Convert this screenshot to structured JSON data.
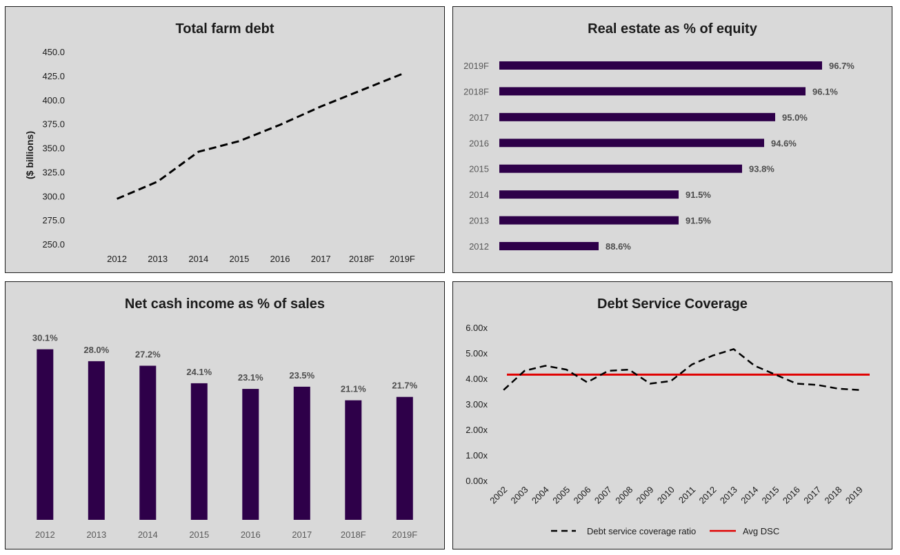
{
  "colors": {
    "bar": "#2e0049",
    "debt_line": "#000000",
    "avg_line": "#e00000",
    "panel_bg": "#d9d9d9"
  },
  "chart_data": [
    {
      "type": "line",
      "title": "Total farm debt",
      "ylabel": "($ billions)",
      "xlabel": "",
      "categories": [
        "2012",
        "2013",
        "2014",
        "2015",
        "2016",
        "2017",
        "2018F",
        "2019F"
      ],
      "values": [
        297.0,
        315.0,
        346.0,
        357.0,
        374.0,
        393.0,
        410.0,
        427.0
      ],
      "yticks": [
        "250.0",
        "275.0",
        "300.0",
        "325.0",
        "350.0",
        "375.0",
        "400.0",
        "425.0",
        "450.0"
      ],
      "ylim": [
        250,
        450
      ],
      "line_style": "dashed"
    },
    {
      "type": "bar",
      "orientation": "horizontal",
      "title": "Real estate as % of equity",
      "categories": [
        "2012",
        "2013",
        "2014",
        "2015",
        "2016",
        "2017",
        "2018F",
        "2019F"
      ],
      "values": [
        88.6,
        91.5,
        91.5,
        93.8,
        94.6,
        95.0,
        96.1,
        96.7
      ],
      "labels": [
        "88.6%",
        "91.5%",
        "91.5%",
        "93.8%",
        "94.6%",
        "95.0%",
        "96.1%",
        "96.7%"
      ],
      "xlim": [
        85,
        97.5
      ]
    },
    {
      "type": "bar",
      "title": "Net cash income as % of sales",
      "categories": [
        "2012",
        "2013",
        "2014",
        "2015",
        "2016",
        "2017",
        "2018F",
        "2019F"
      ],
      "values": [
        30.1,
        28.0,
        27.2,
        24.1,
        23.1,
        23.5,
        21.1,
        21.7
      ],
      "labels": [
        "30.1%",
        "28.0%",
        "27.2%",
        "24.1%",
        "23.1%",
        "23.5%",
        "21.1%",
        "21.7%"
      ],
      "ylim": [
        0,
        32
      ]
    },
    {
      "type": "line",
      "title": "Debt Service Coverage",
      "categories": [
        "2002",
        "2003",
        "2004",
        "2005",
        "2006",
        "2007",
        "2008",
        "2009",
        "2010",
        "2011",
        "2012",
        "2013",
        "2014",
        "2015",
        "2016",
        "2017",
        "2018",
        "2019"
      ],
      "series": [
        {
          "name": "Debt service coverage ratio",
          "values": [
            3.55,
            4.3,
            4.5,
            4.35,
            3.85,
            4.3,
            4.35,
            3.8,
            3.9,
            4.55,
            4.9,
            5.15,
            4.5,
            4.15,
            3.8,
            3.75,
            3.6,
            3.55
          ],
          "style": "dashed"
        },
        {
          "name": "Avg DSC",
          "values": [
            4.15,
            4.15,
            4.15,
            4.15,
            4.15,
            4.15,
            4.15,
            4.15,
            4.15,
            4.15,
            4.15,
            4.15,
            4.15,
            4.15,
            4.15,
            4.15,
            4.15,
            4.15
          ],
          "style": "solid"
        }
      ],
      "yticks": [
        "0.00x",
        "1.00x",
        "2.00x",
        "3.00x",
        "4.00x",
        "5.00x",
        "6.00x"
      ],
      "ylim": [
        0,
        6
      ],
      "legend_position": "bottom"
    }
  ]
}
